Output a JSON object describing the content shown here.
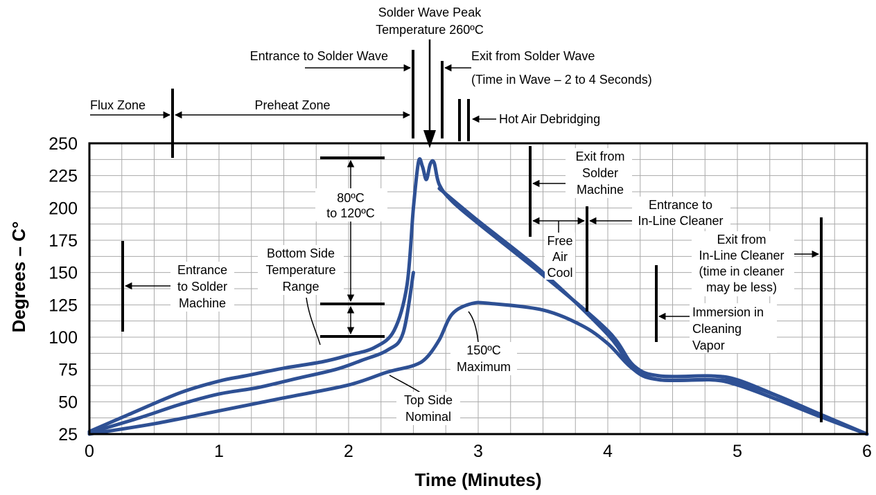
{
  "chart_data": {
    "type": "line",
    "xlabel": "Time (Minutes)",
    "ylabel": "Degrees – C°",
    "xlim": [
      0,
      6
    ],
    "ylim": [
      25,
      250
    ],
    "x_ticks": [
      "0",
      "1",
      "2",
      "3",
      "4",
      "5",
      "6"
    ],
    "y_ticks": [
      "25",
      "50",
      "75",
      "100",
      "125",
      "150",
      "175",
      "200",
      "225",
      "250"
    ],
    "grid": true,
    "colors": {
      "curve": "#2e5094",
      "grid": "#aaaaaa"
    },
    "series": [
      {
        "points": [
          [
            0,
            27
          ],
          [
            0.3,
            40
          ],
          [
            0.7,
            57
          ],
          [
            1,
            66
          ],
          [
            1.2,
            70
          ],
          [
            1.5,
            76
          ],
          [
            1.8,
            81
          ],
          [
            2,
            86
          ],
          [
            2.2,
            92
          ],
          [
            2.35,
            105
          ],
          [
            2.45,
            140
          ],
          [
            2.5,
            200
          ],
          [
            2.54,
            236
          ],
          [
            2.57,
            232
          ],
          [
            2.6,
            222
          ],
          [
            2.63,
            234
          ],
          [
            2.66,
            235
          ],
          [
            2.7,
            218
          ],
          [
            2.8,
            205
          ],
          [
            3,
            188
          ],
          [
            3.5,
            148
          ],
          [
            4,
            105
          ],
          [
            4.2,
            78
          ],
          [
            4.4,
            70
          ],
          [
            4.8,
            70
          ],
          [
            5,
            67
          ],
          [
            5.3,
            55
          ],
          [
            5.6,
            42
          ],
          [
            6,
            25
          ]
        ]
      },
      {
        "points": [
          [
            0,
            26
          ],
          [
            0.4,
            38
          ],
          [
            0.7,
            48
          ],
          [
            1,
            56
          ],
          [
            1.3,
            61
          ],
          [
            1.6,
            68
          ],
          [
            1.9,
            75
          ],
          [
            2.1,
            82
          ],
          [
            2.3,
            90
          ],
          [
            2.42,
            103
          ],
          [
            2.5,
            150
          ]
        ]
      },
      {
        "points": [
          [
            2.7,
            215
          ],
          [
            3,
            190
          ],
          [
            3.5,
            150
          ],
          [
            4,
            102
          ],
          [
            4.2,
            75
          ],
          [
            4.4,
            67
          ],
          [
            4.8,
            67
          ],
          [
            5,
            63
          ],
          [
            5.3,
            52
          ],
          [
            5.6,
            40
          ],
          [
            6,
            25
          ]
        ]
      },
      {
        "points": [
          [
            0,
            25
          ],
          [
            0.5,
            33
          ],
          [
            1,
            43
          ],
          [
            1.5,
            53
          ],
          [
            2,
            63
          ],
          [
            2.3,
            73
          ],
          [
            2.5,
            78
          ],
          [
            2.6,
            84
          ],
          [
            2.7,
            98
          ],
          [
            2.8,
            118
          ],
          [
            2.95,
            126
          ],
          [
            3.1,
            126
          ],
          [
            3.5,
            121
          ],
          [
            3.8,
            109
          ],
          [
            4,
            95
          ],
          [
            4.2,
            75
          ],
          [
            4.4,
            67
          ],
          [
            4.8,
            67
          ],
          [
            5,
            65
          ],
          [
            5.3,
            55
          ],
          [
            5.6,
            42
          ],
          [
            6,
            25
          ]
        ]
      }
    ],
    "annotations": {
      "flux_zone": "Flux Zone",
      "preheat_zone": "Preheat Zone",
      "entrance_wave": "Entrance to Solder Wave",
      "peak_1": "Solder Wave Peak",
      "peak_2": "Temperature 260ºC",
      "exit_wave": "Exit from Solder Wave",
      "time_in_wave": "(Time in Wave – 2 to 4 Seconds)",
      "hot_air": "Hot Air Debridging",
      "range_1": "80ºC",
      "range_2": "to 120ºC",
      "bottom_1": "Bottom Side",
      "bottom_2": "Temperature",
      "bottom_3": "Range",
      "entrance_machine_1": "Entrance",
      "entrance_machine_2": "to Solder",
      "entrance_machine_3": "Machine",
      "exit_machine_1": "Exit from",
      "exit_machine_2": "Solder",
      "exit_machine_3": "Machine",
      "free_1": "Free",
      "free_2": "Air",
      "free_3": "Cool",
      "entrance_cleaner_1": "Entrance to",
      "entrance_cleaner_2": "In-Line Cleaner",
      "exit_cleaner_1": "Exit from",
      "exit_cleaner_2": "In-Line Cleaner",
      "exit_cleaner_3": "(time in cleaner",
      "exit_cleaner_4": "may be less)",
      "immersion_1": "Immersion in",
      "immersion_2": "Cleaning",
      "immersion_3": "Vapor",
      "max_1": "150ºC",
      "max_2": "Maximum",
      "top_1": "Top Side",
      "top_2": "Nominal"
    }
  }
}
